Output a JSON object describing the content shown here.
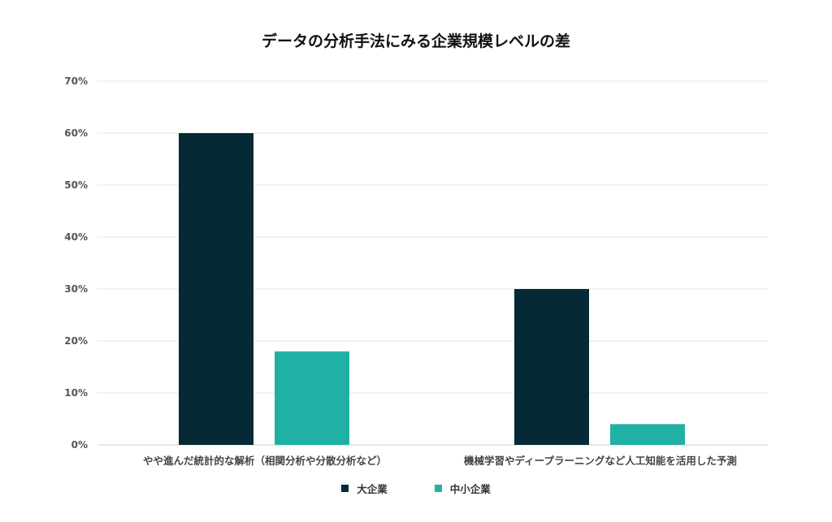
{
  "chart_data": {
    "type": "bar",
    "title": "データの分析手法にみる企業規模レベルの差",
    "categories": [
      "やや進んだ統計的な解析（相関分析や分散分析など）",
      "機械学習やディープラーニングなど人工知能を活用した予測"
    ],
    "series": [
      {
        "name": "大企業",
        "values": [
          60,
          30
        ],
        "color": "#052a36"
      },
      {
        "name": "中小企業",
        "values": [
          18,
          4
        ],
        "color": "#21b1a4"
      }
    ],
    "ylim": [
      0,
      70
    ],
    "yticks": [
      0,
      10,
      20,
      30,
      40,
      50,
      60,
      70
    ],
    "ytick_labels": [
      "0%",
      "10%",
      "20%",
      "30%",
      "40%",
      "50%",
      "60%",
      "70%"
    ],
    "grid": true,
    "legend_position": "bottom"
  }
}
